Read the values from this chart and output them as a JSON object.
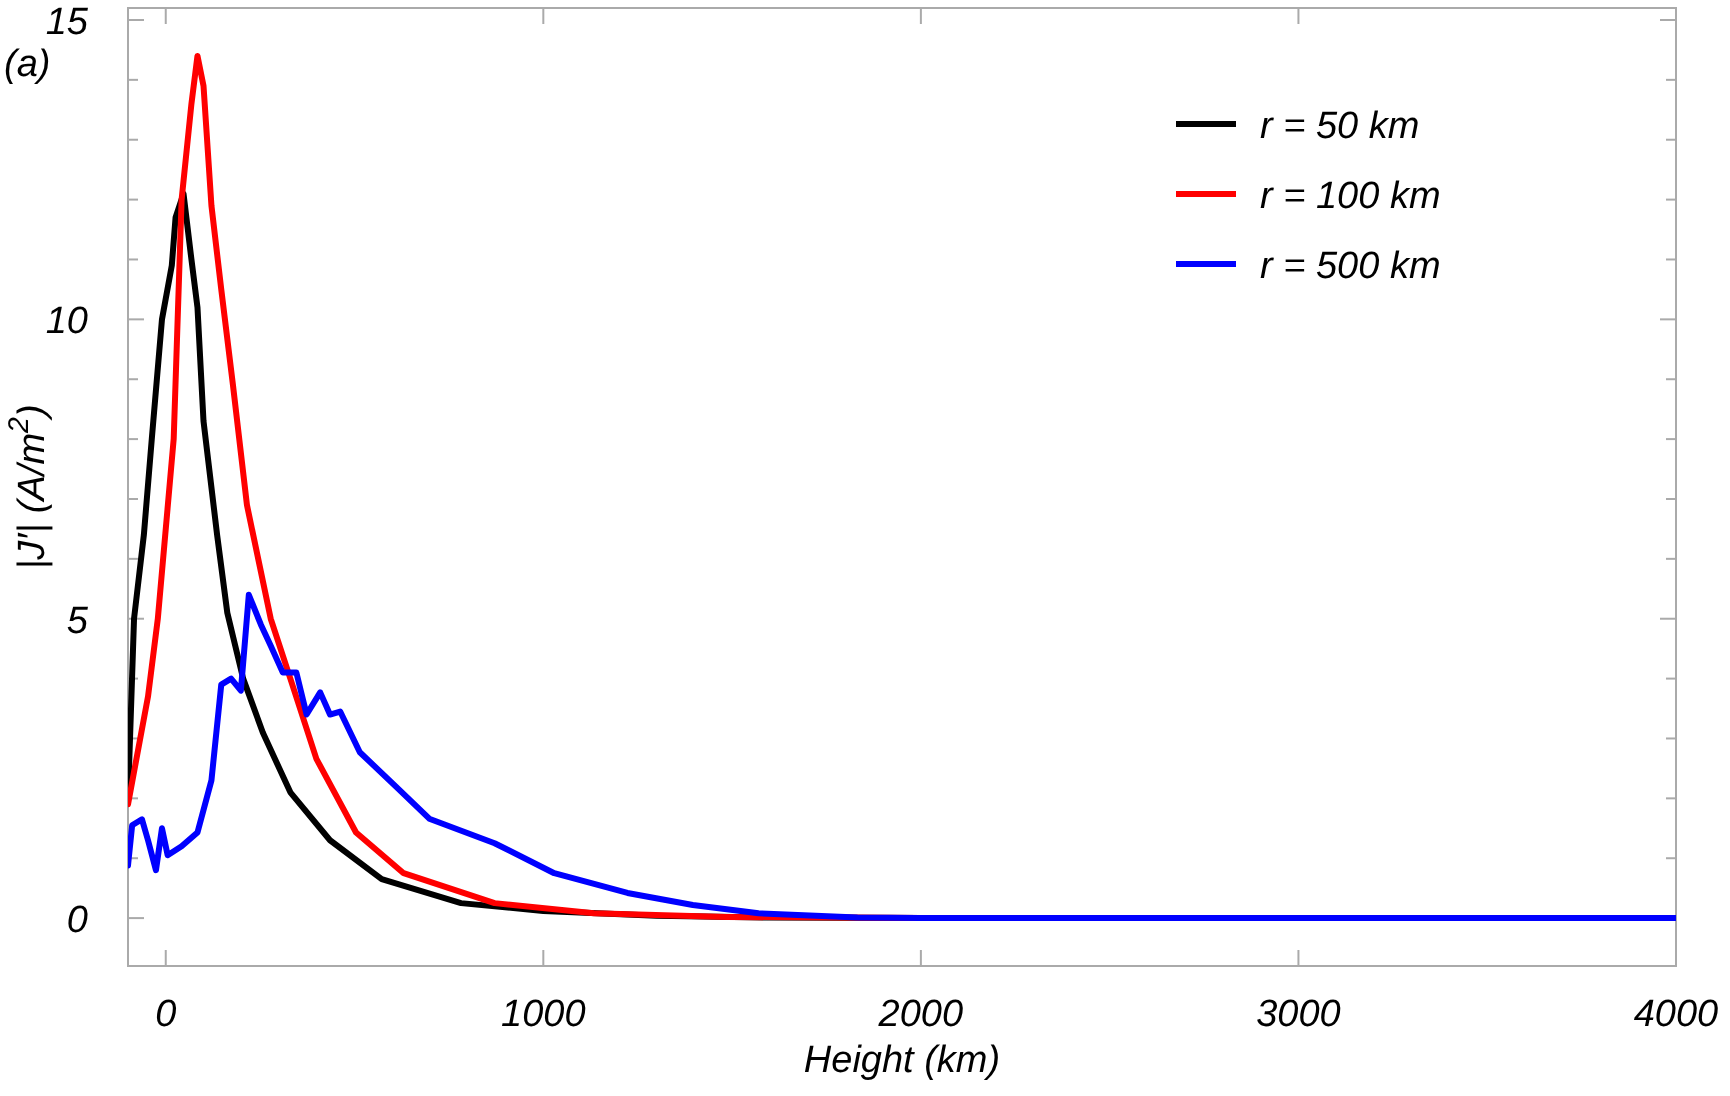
{
  "chart_data": {
    "type": "line",
    "xlabel": "Height (km)",
    "ylabel": "|J′| (A/m$^{2}$)",
    "annotations": [
      "(a)"
    ],
    "xlim": [
      -100,
      4000
    ],
    "xticks": [
      0,
      1000,
      2000,
      3000,
      4000
    ],
    "ylim": [
      -0.8,
      15.2
    ],
    "yticks": [
      0,
      {
        "value": 1,
        "label": null
      },
      {
        "value": 2,
        "label": null
      },
      {
        "value": 3,
        "label": null
      },
      {
        "value": 4,
        "label": null
      },
      5,
      {
        "value": 6,
        "label": null
      },
      {
        "value": 7,
        "label": null
      },
      {
        "value": 8,
        "label": null
      },
      {
        "value": 9,
        "label": null
      },
      10,
      {
        "value": 11,
        "label": null
      },
      {
        "value": 12,
        "label": null
      },
      {
        "value": 13,
        "label": null
      },
      {
        "value": 14,
        "label": null
      },
      15
    ],
    "grid": false,
    "legend": "top right",
    "line_style": "solid",
    "marker": "none",
    "series": [
      {
        "name": "r = 50 km",
        "color": "#000000",
        "x": [
          -100,
          -84,
          -58,
          -37,
          -10,
          16,
          26,
          47,
          68,
          84,
          100,
          136,
          163,
          205,
          257,
          330,
          435,
          572,
          782,
          1000,
          1300,
          1600,
          2000,
          4000
        ],
        "values": [
          2.0,
          5.0,
          6.4,
          8.0,
          10.0,
          10.9,
          11.7,
          12.1,
          11.0,
          10.2,
          8.3,
          6.4,
          5.1,
          4.0,
          3.1,
          2.1,
          1.3,
          0.65,
          0.25,
          0.12,
          0.04,
          0.01,
          0,
          0
        ]
      },
      {
        "name": "r = 100 km",
        "color": "#ff0000",
        "x": [
          -100,
          -47,
          -21,
          21,
          42,
          68,
          84,
          100,
          121,
          147,
          178,
          215,
          278,
          330,
          399,
          504,
          630,
          871,
          1134,
          1485,
          2000,
          4000
        ],
        "values": [
          1.9,
          3.7,
          5.0,
          8.0,
          12.0,
          13.6,
          14.4,
          13.9,
          11.9,
          10.5,
          8.9,
          6.9,
          5.0,
          4.0,
          2.66,
          1.43,
          0.75,
          0.25,
          0.08,
          0.02,
          0,
          0
        ]
      },
      {
        "name": "r = 500 km",
        "color": "#0000ff",
        "x": [
          -100,
          -89,
          -63,
          -47,
          -26,
          -10,
          5,
          42,
          84,
          121,
          147,
          173,
          199,
          220,
          252,
          278,
          310,
          346,
          373,
          409,
          435,
          462,
          514,
          609,
          698,
          871,
          1029,
          1223,
          1396,
          1570,
          1832,
          2000,
          4000
        ],
        "values": [
          0.88,
          1.55,
          1.65,
          1.3,
          0.8,
          1.5,
          1.05,
          1.2,
          1.43,
          2.3,
          3.9,
          4.0,
          3.8,
          5.4,
          4.9,
          4.55,
          4.1,
          4.1,
          3.4,
          3.77,
          3.4,
          3.45,
          2.77,
          2.2,
          1.66,
          1.25,
          0.75,
          0.42,
          0.22,
          0.08,
          0.01,
          0,
          0
        ]
      }
    ]
  }
}
